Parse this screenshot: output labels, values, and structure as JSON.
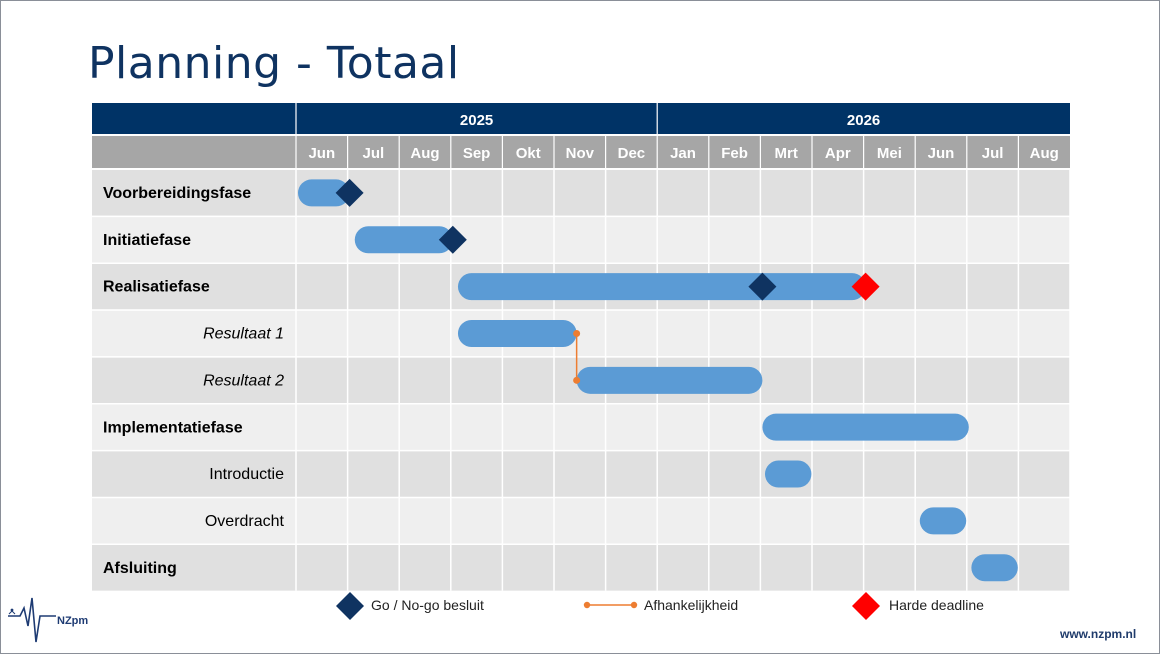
{
  "title": "Planning - Totaal",
  "years": [
    "2025",
    "2026"
  ],
  "months": [
    "Jun",
    "Jul",
    "Aug",
    "Sep",
    "Okt",
    "Nov",
    "Dec",
    "Jan",
    "Feb",
    "Mrt",
    "Apr",
    "Mei",
    "Jun",
    "Jul",
    "Aug"
  ],
  "rows": [
    {
      "label": "Voorbereidingsfase",
      "style": "bold"
    },
    {
      "label": "Initiatiefase",
      "style": "bold"
    },
    {
      "label": "Realisatiefase",
      "style": "bold"
    },
    {
      "label": "Resultaat 1",
      "style": "italic"
    },
    {
      "label": "Resultaat 2",
      "style": "italic"
    },
    {
      "label": "Implementatiefase",
      "style": "bold"
    },
    {
      "label": "Introductie",
      "style": "normal"
    },
    {
      "label": "Overdracht",
      "style": "normal"
    },
    {
      "label": "Afsluiting",
      "style": "bold"
    }
  ],
  "bars": [
    {
      "row": 0,
      "start": 0.0,
      "end": 1.0
    },
    {
      "row": 1,
      "start": 1.1,
      "end": 3.0
    },
    {
      "row": 2,
      "start": 3.1,
      "end": 11.0
    },
    {
      "row": 3,
      "start": 3.1,
      "end": 5.4
    },
    {
      "row": 4,
      "start": 5.4,
      "end": 9.0
    },
    {
      "row": 5,
      "start": 9.0,
      "end": 13.0
    },
    {
      "row": 6,
      "start": 9.05,
      "end": 9.95
    },
    {
      "row": 7,
      "start": 12.05,
      "end": 12.95
    },
    {
      "row": 8,
      "start": 13.05,
      "end": 13.95
    }
  ],
  "milestones": [
    {
      "row": 0,
      "at": 1.0,
      "type": "go"
    },
    {
      "row": 1,
      "at": 3.0,
      "type": "go"
    },
    {
      "row": 2,
      "at": 9.0,
      "type": "go"
    },
    {
      "row": 2,
      "at": 11.0,
      "type": "deadline"
    }
  ],
  "dependencies": [
    {
      "from_row": 3,
      "to_row": 4,
      "at": 5.4
    }
  ],
  "legend": {
    "go": "Go / No-go besluit",
    "dependency": "Afhankelijkheid",
    "deadline": "Harde deadline"
  },
  "colors": {
    "header_dark": "#003366",
    "header_grey": "#a6a6a6",
    "row_dark": "#e0e0e0",
    "row_light": "#efefef",
    "bar": "#5b9bd5",
    "go": "#0f3361",
    "deadline": "#ff0000",
    "dependency": "#ed7d31"
  },
  "logo_text": "NZpm",
  "url": "www.nzpm.nl"
}
